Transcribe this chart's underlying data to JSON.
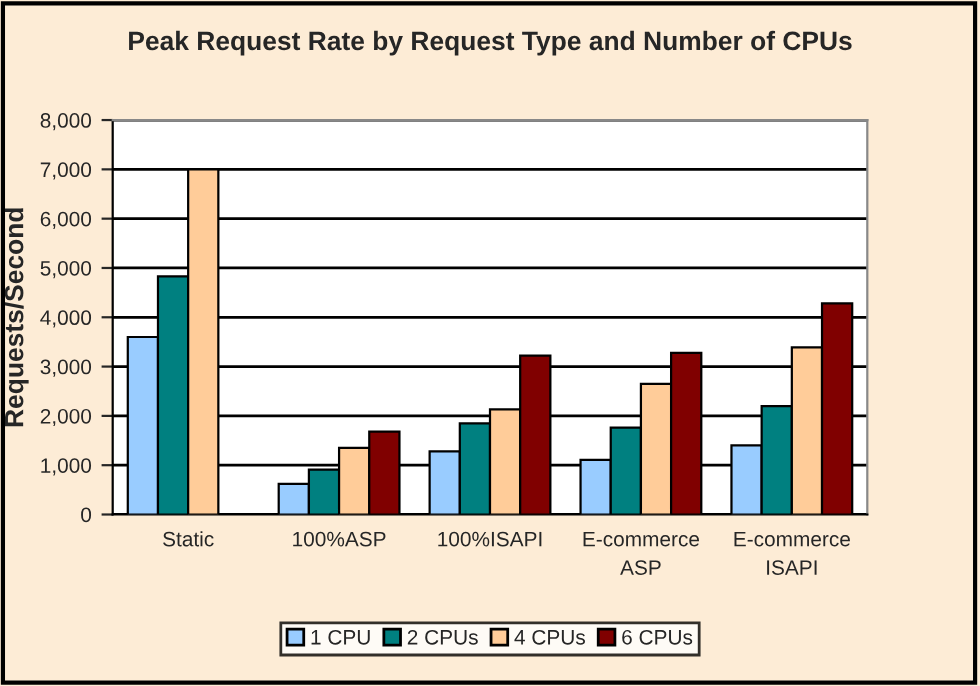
{
  "chart_data": {
    "type": "bar",
    "title": "Peak Request Rate by Request Type and Number of CPUs",
    "ylabel": "Requests/Second",
    "categories": [
      "Static",
      "100%ASP",
      "100%ISAPI",
      "E-commerce\nASP",
      "E-commerce\nISAPI"
    ],
    "series": [
      {
        "name": "1 CPU",
        "color": "#99ccff",
        "values": [
          3600,
          620,
          1280,
          1110,
          1400
        ]
      },
      {
        "name": "2 CPUs",
        "color": "#008080",
        "values": [
          4830,
          910,
          1850,
          1760,
          2200
        ]
      },
      {
        "name": "4 CPUs",
        "color": "#ffcc99",
        "values": [
          7000,
          1350,
          2130,
          2650,
          3390
        ]
      },
      {
        "name": "6 CPUs",
        "color": "#800000",
        "values": [
          null,
          1680,
          3220,
          3280,
          4280
        ]
      }
    ],
    "ylim": [
      0,
      8000
    ],
    "yticks": [
      {
        "value": 0,
        "label": "0"
      },
      {
        "value": 1000,
        "label": "1,000"
      },
      {
        "value": 2000,
        "label": "2,000"
      },
      {
        "value": 3000,
        "label": "3,000"
      },
      {
        "value": 4000,
        "label": "4,000"
      },
      {
        "value": 5000,
        "label": "5,000"
      },
      {
        "value": 6000,
        "label": "6,000"
      },
      {
        "value": 7000,
        "label": "7,000"
      },
      {
        "value": 8000,
        "label": "8,000"
      }
    ],
    "grid": "y",
    "legend": "bottom"
  }
}
